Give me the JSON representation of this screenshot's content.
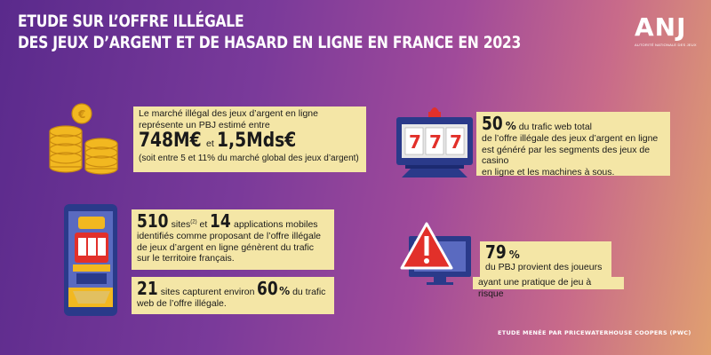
{
  "header": {
    "title_line1": "ETUDE SUR L’OFFRE ILLÉGALE",
    "title_line2": "DES JEUX D’ARGENT ET DE HASARD EN LIGNE EN FRANCE EN 2023"
  },
  "logo": {
    "mark": "ANJ",
    "subtitle": "AUTORITÉ NATIONALE DES JEUX"
  },
  "block_market": {
    "line1": "Le marché illégal des jeux d’argent en ligne",
    "line2": "représente un PBJ estimé entre",
    "value1": "748M€",
    "connector": "et",
    "value2": "1,5Mds€",
    "note": "(soit entre 5 et 11% du marché global des jeux d’argent)"
  },
  "block_traffic": {
    "value": "50",
    "pct": "%",
    "line1": "du trafic web total",
    "line2": "de l’offre illégale des jeux d’argent en ligne",
    "line3": "est généré par les segments des jeux de casino",
    "line4": "en ligne et les machines à sous."
  },
  "block_sites": {
    "sites_value": "510",
    "sites_label": "sites",
    "sites_note": "(2)",
    "connector": "et",
    "apps_value": "14",
    "apps_label": "applications mobiles",
    "line2": "identifiés comme proposant de l’offre illégale",
    "line3": "de jeux d’argent en ligne génèrent du trafic",
    "line4": "sur le territoire français."
  },
  "block_capture": {
    "value": "21",
    "text": "sites capturent environ",
    "pct_value": "60",
    "pct": "%",
    "text2": "du trafic",
    "line2": "web de l’offre illégale."
  },
  "block_risk": {
    "value": "79",
    "pct": "%",
    "line1": "du PBJ provient des joueurs",
    "line2": "ayant une pratique de jeu à risque"
  },
  "footer": {
    "credit": "ETUDE MENÉE PAR PRICEWATERHOUSE COOPERS (PWC)"
  },
  "colors": {
    "box": "#f4e6a6",
    "gold": "#f2b820",
    "red": "#e2302a",
    "navy": "#2a3a8a"
  },
  "icons": [
    "coins-icon",
    "slot-machine-icon",
    "phone-slot-icon",
    "warning-screen-icon"
  ]
}
